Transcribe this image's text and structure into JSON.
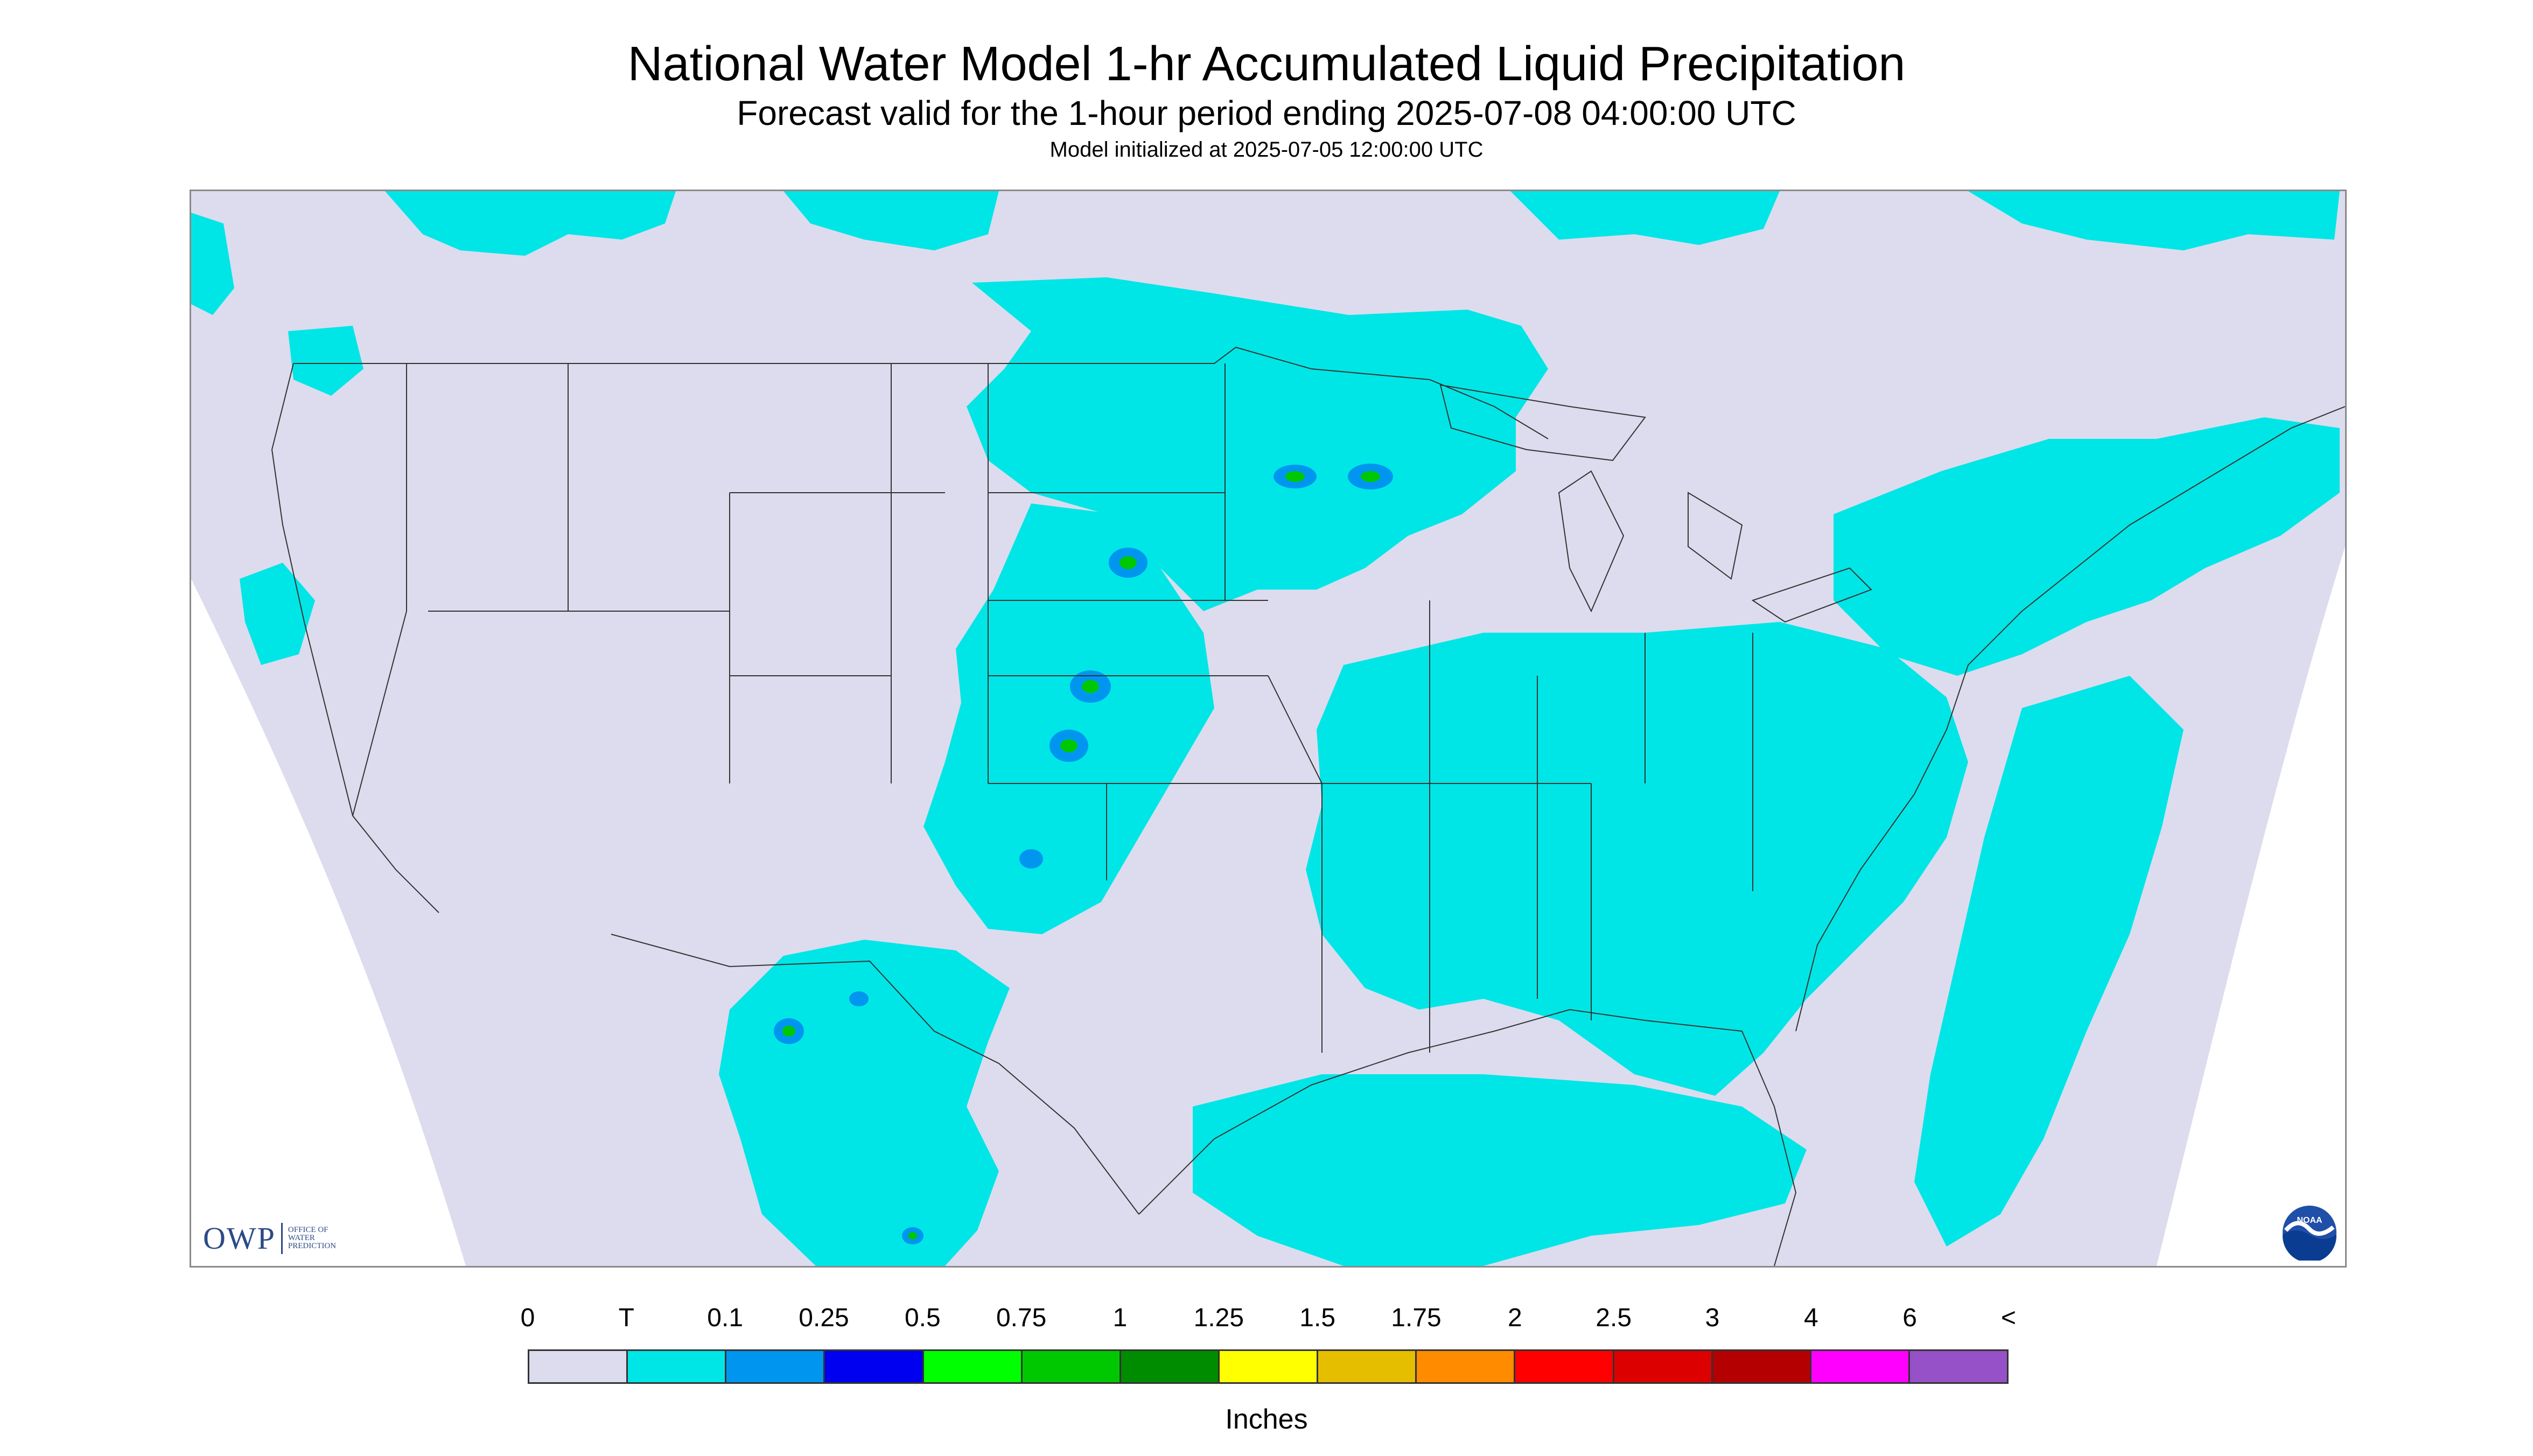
{
  "header": {
    "title": "National Water Model 1-hr Accumulated Liquid Precipitation",
    "subtitle": "Forecast valid for the 1-hour period ending 2025-07-08 04:00:00 UTC",
    "init": "Model initialized at 2025-07-05 12:00:00 UTC"
  },
  "map": {
    "background_color": "#dcdcee",
    "outside_domain_color": "#ffffff",
    "boundary_color": "#333333",
    "precip_areas": [
      {
        "name": "north-dakota-minnesota-band",
        "level": "T"
      },
      {
        "name": "central-plains-band",
        "level": "T"
      },
      {
        "name": "ohio-valley-southeast",
        "level": "T"
      },
      {
        "name": "northeast-great-lakes",
        "level": "T"
      },
      {
        "name": "atlantic-offshore",
        "level": "T"
      },
      {
        "name": "gulf-of-mexico",
        "level": "T"
      },
      {
        "name": "southwest-mexico",
        "level": "T"
      },
      {
        "name": "pacific-northwest",
        "level": "T"
      },
      {
        "name": "canada-north",
        "level": "T"
      },
      {
        "name": "plains-cores",
        "level": "0.25-0.75"
      }
    ]
  },
  "logos": {
    "owp_mark": "OWP",
    "owp_text": "OFFICE OF\nWATER\nPREDICTION",
    "noaa_text": "NOAA"
  },
  "legend": {
    "labels": [
      "0",
      "T",
      "0.1",
      "0.25",
      "0.5",
      "0.75",
      "1",
      "1.25",
      "1.5",
      "1.75",
      "2",
      "2.5",
      "3",
      "4",
      "6",
      "<"
    ],
    "colors": [
      "#dcdcee",
      "#00e6e6",
      "#0096f0",
      "#0000f0",
      "#00ff00",
      "#00c800",
      "#008c00",
      "#ffff00",
      "#e6be00",
      "#ff8c00",
      "#ff0000",
      "#dc0000",
      "#b40000",
      "#ff00ff",
      "#9650c8"
    ],
    "units": "Inches"
  }
}
